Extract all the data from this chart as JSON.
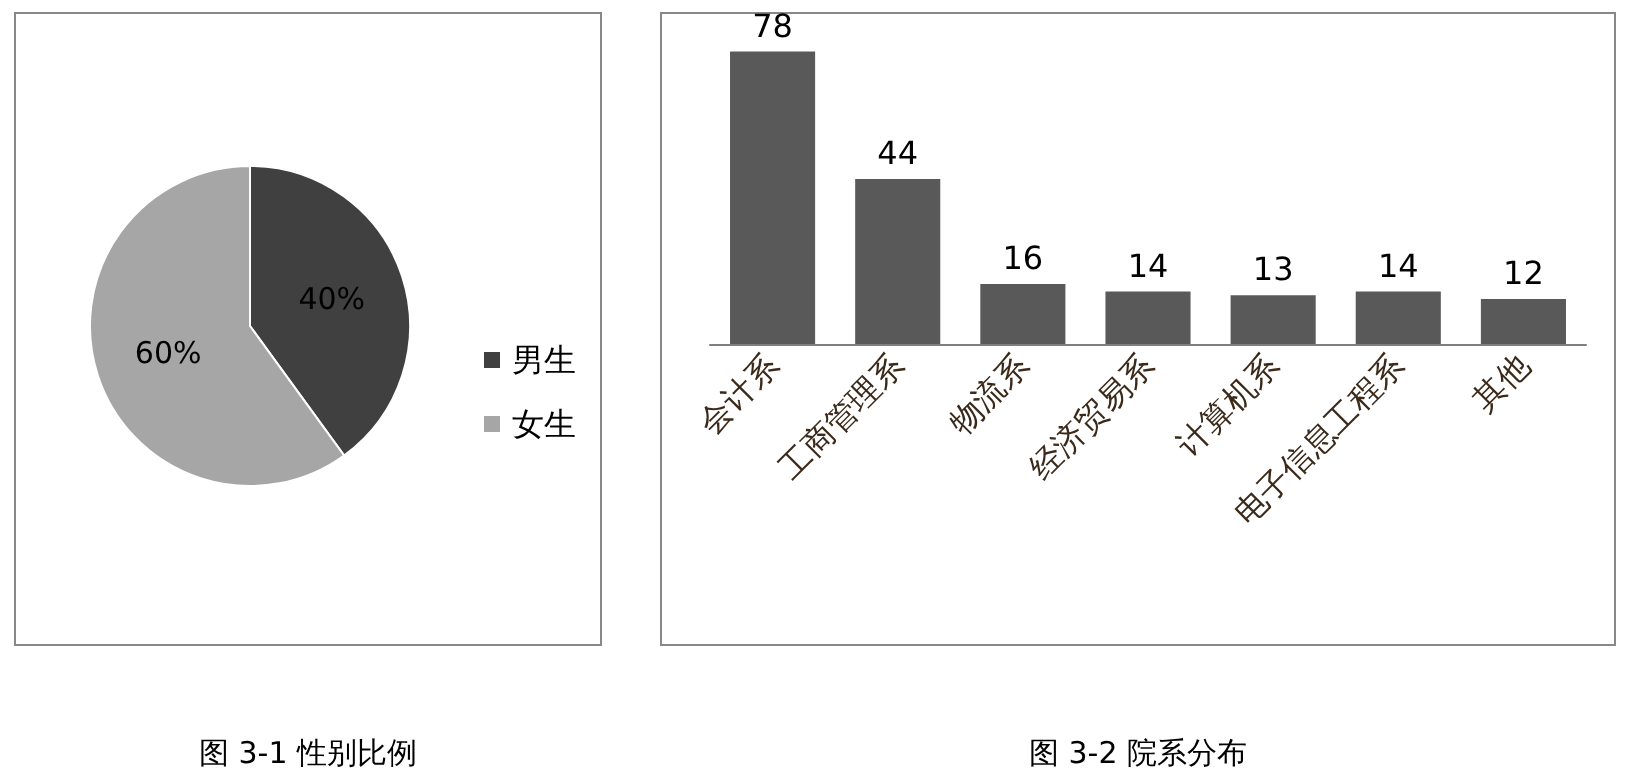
{
  "chart_data": [
    {
      "type": "pie",
      "categories": [
        "男生",
        "女生"
      ],
      "values": [
        40,
        60
      ],
      "colors": [
        "#404040",
        "#a6a6a6"
      ],
      "legend": "right",
      "value_labels": [
        "40%",
        "60%"
      ],
      "annotations": [
        "图 3-1 性别比例"
      ]
    },
    {
      "type": "bar",
      "categories": [
        "会计系",
        "工商管理系",
        "物流系",
        "经济贸易系",
        "计算机系",
        "电子信息工程系",
        "其他"
      ],
      "values": [
        78,
        44,
        16,
        14,
        13,
        14,
        12
      ],
      "color": "#595959",
      "data_labels": true,
      "annotations": [
        "图 3-2 院系分布"
      ]
    }
  ]
}
